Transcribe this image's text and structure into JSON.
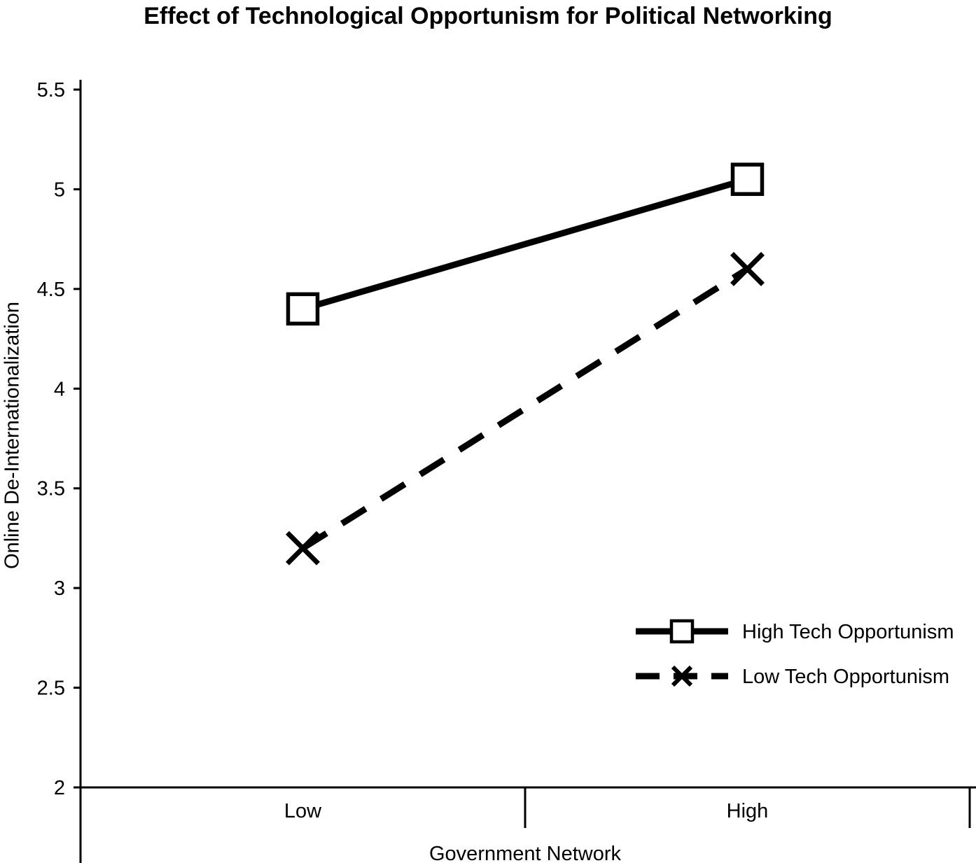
{
  "page": {
    "background": "#ffffff",
    "ink_color": "#000000"
  },
  "chart_data": {
    "type": "line",
    "title": "Effect of Technological Opportunism for Political Networking",
    "xlabel": "Government Network",
    "ylabel": "Online De-Internationalization",
    "categories": [
      "Low",
      "High"
    ],
    "series": [
      {
        "name": "High Tech Opportunism",
        "values": [
          4.4,
          5.05
        ],
        "line_style": "solid",
        "marker": "square",
        "color": "#000000"
      },
      {
        "name": "Low Tech Opportunism",
        "values": [
          3.2,
          4.6
        ],
        "line_style": "dashed",
        "marker": "x",
        "color": "#000000"
      }
    ],
    "ylim": [
      2,
      5.5
    ],
    "yticks": [
      2,
      2.5,
      3,
      3.5,
      4,
      4.5,
      5,
      5.5
    ],
    "ytick_labels": [
      "2",
      "2.5",
      "3",
      "3.5",
      "4",
      "4.5",
      "5",
      "5.5"
    ],
    "grid": false,
    "legend_position": "lower-right"
  }
}
